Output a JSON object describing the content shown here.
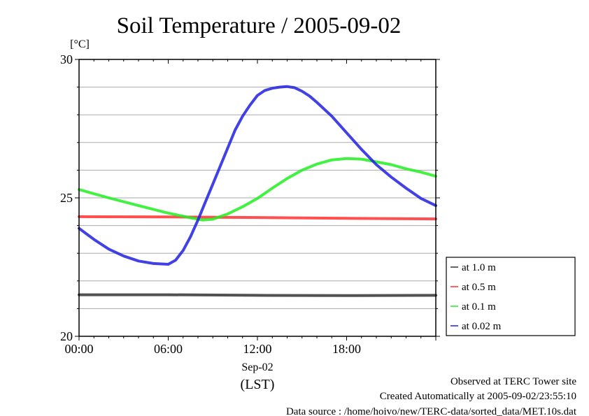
{
  "chart_data": {
    "type": "line",
    "title": "Soil Temperature / 2005-09-02",
    "ylabel": "[°C]",
    "xlabel": "(LST)",
    "date_label": "Sep-02",
    "ylim": [
      20,
      30
    ],
    "xlim_hours": [
      0,
      24
    ],
    "y_ticks": [
      "20",
      "25",
      "30"
    ],
    "y_tick_values": [
      20,
      25,
      30
    ],
    "x_ticks": [
      "00:00",
      "06:00",
      "12:00",
      "18:00"
    ],
    "x_tick_values": [
      0,
      6,
      12,
      18
    ],
    "grid": true,
    "legend_position": "right",
    "series": [
      {
        "name": "at 1.0 m",
        "color": "#333333",
        "x": [
          0,
          6,
          12,
          18,
          24
        ],
        "y": [
          21.5,
          21.5,
          21.48,
          21.47,
          21.48
        ]
      },
      {
        "name": "at 0.5 m",
        "color": "#ff3030",
        "x": [
          0,
          6,
          12,
          18,
          24
        ],
        "y": [
          24.32,
          24.31,
          24.29,
          24.26,
          24.24
        ]
      },
      {
        "name": "at 0.1 m",
        "color": "#22ee22",
        "x": [
          0,
          2,
          4,
          6,
          7.5,
          8.3,
          9,
          10,
          11,
          12,
          13,
          14,
          15,
          16,
          17,
          18,
          19,
          20,
          21,
          22,
          23,
          24
        ],
        "y": [
          25.3,
          25.0,
          24.72,
          24.45,
          24.28,
          24.2,
          24.23,
          24.42,
          24.68,
          24.98,
          25.35,
          25.7,
          26.0,
          26.22,
          26.37,
          26.42,
          26.4,
          26.3,
          26.2,
          26.05,
          25.93,
          25.78
        ]
      },
      {
        "name": "at 0.02 m",
        "color": "#2020e0",
        "x": [
          0,
          1,
          2,
          3,
          4,
          5,
          6,
          6.5,
          7,
          7.5,
          8,
          8.5,
          9,
          9.5,
          10,
          10.5,
          11,
          11.5,
          12,
          12.5,
          13,
          13.5,
          14,
          14.5,
          15,
          15.5,
          16,
          17,
          18,
          19,
          20,
          21,
          22,
          23,
          24
        ],
        "y": [
          23.9,
          23.5,
          23.15,
          22.9,
          22.72,
          22.63,
          22.6,
          22.75,
          23.1,
          23.6,
          24.2,
          24.85,
          25.5,
          26.15,
          26.8,
          27.45,
          27.95,
          28.35,
          28.7,
          28.88,
          28.96,
          29.0,
          29.02,
          28.98,
          28.85,
          28.68,
          28.45,
          27.95,
          27.35,
          26.75,
          26.2,
          25.75,
          25.35,
          24.98,
          24.72
        ]
      }
    ]
  },
  "footer": {
    "site": "Observed at TERC Tower site",
    "created": "Created Automatically at 2005-09-02/23:55:10",
    "source": "Data source : /home/hoivo/new/TERC-data/sorted_data/MET.10s.dat"
  }
}
